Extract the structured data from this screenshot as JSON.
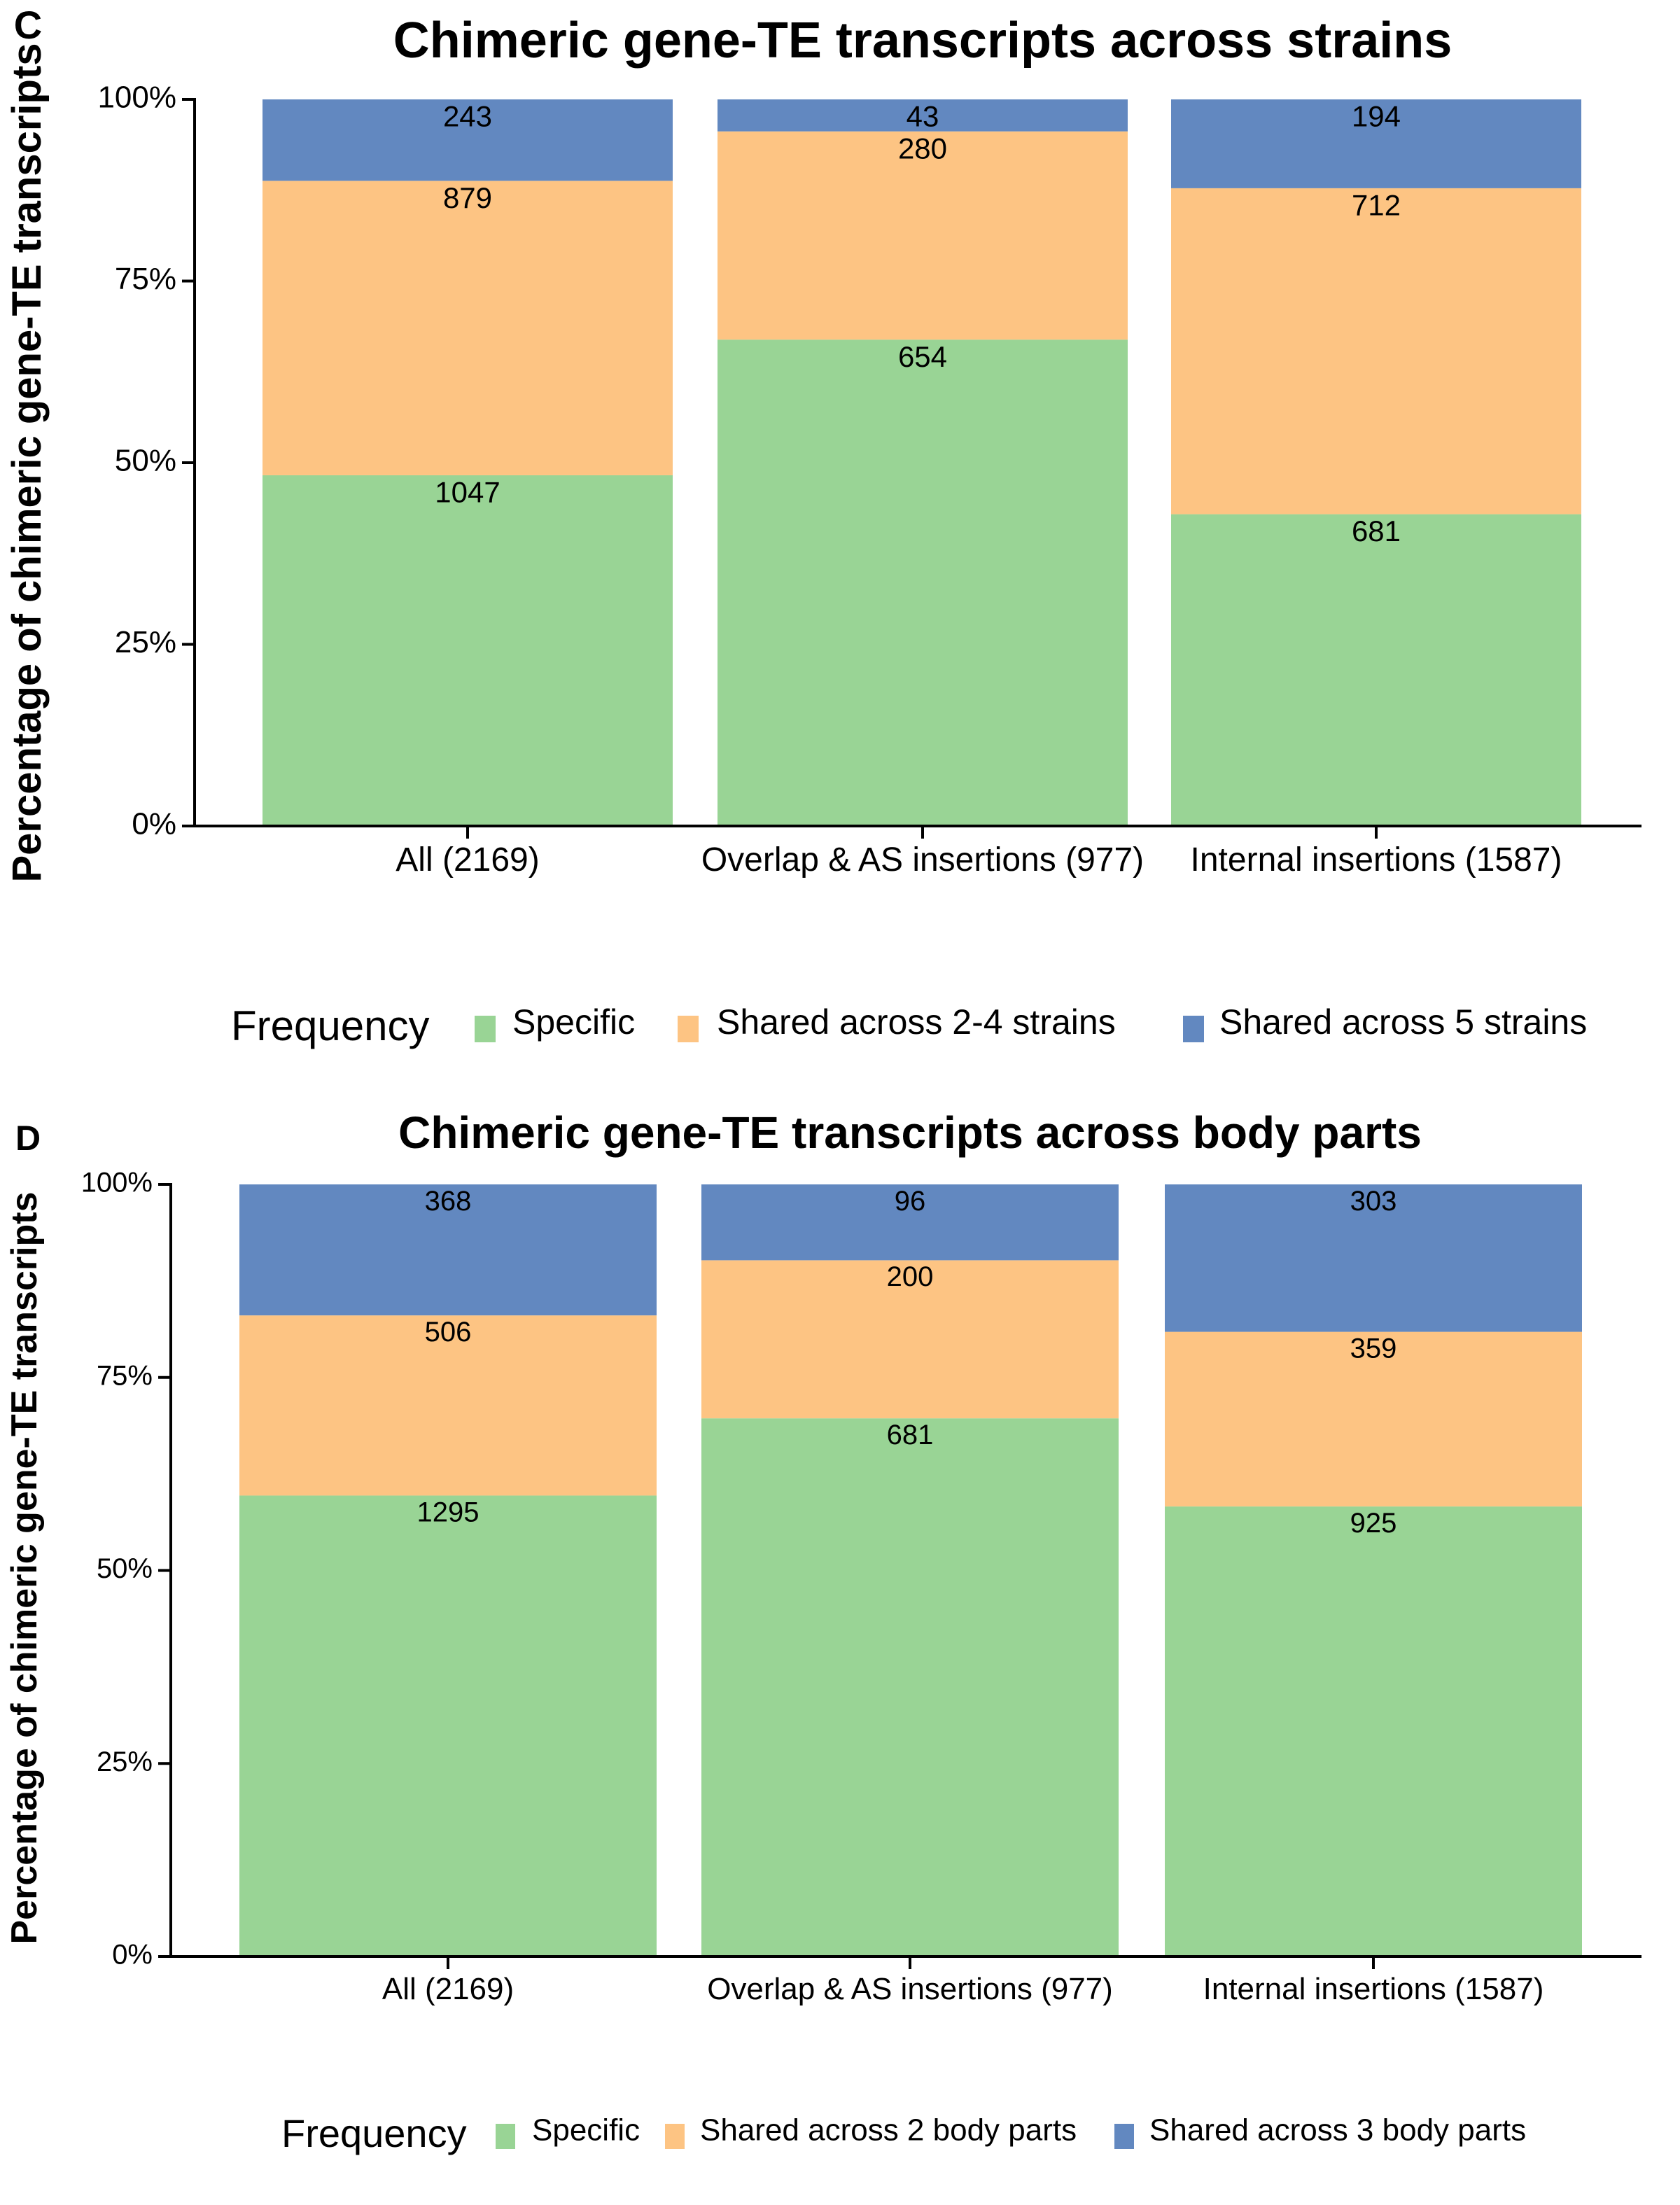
{
  "chart_data": [
    {
      "type": "bar",
      "stacked": "percent",
      "panel_label": "C",
      "title": "Chimeric gene-TE transcripts across strains",
      "ylabel": "Percentage of chimeric gene-TE  transcripts",
      "xlabel": "",
      "ylim": [
        0,
        100
      ],
      "yticks": [
        "0%",
        "25%",
        "50%",
        "75%",
        "100%"
      ],
      "categories": [
        "All (2169)",
        "Overlap & AS insertions (977)",
        "Internal insertions (1587)"
      ],
      "legend_title": "Frequency",
      "legend_position": "bottom",
      "grid": false,
      "series": [
        {
          "name": "Specific",
          "color": "#99D495",
          "values": [
            1047,
            654,
            681
          ]
        },
        {
          "name": "Shared across 2-4 strains",
          "color": "#FDC483",
          "values": [
            879,
            280,
            712
          ]
        },
        {
          "name": "Shared across 5 strains",
          "color": "#6288C0",
          "values": [
            243,
            43,
            194
          ]
        }
      ]
    },
    {
      "type": "bar",
      "stacked": "percent",
      "panel_label": "D",
      "title": "Chimeric gene-TE transcripts across body parts",
      "ylabel": "Percentage of chimeric gene-TE  transcripts",
      "xlabel": "",
      "ylim": [
        0,
        100
      ],
      "yticks": [
        "0%",
        "25%",
        "50%",
        "75%",
        "100%"
      ],
      "categories": [
        "All (2169)",
        "Overlap & AS insertions (977)",
        "Internal insertions (1587)"
      ],
      "legend_title": "Frequency",
      "legend_position": "bottom",
      "grid": false,
      "series": [
        {
          "name": "Specific",
          "color": "#99D495",
          "values": [
            1295,
            681,
            925
          ]
        },
        {
          "name": "Shared across 2 body parts",
          "color": "#FDC483",
          "values": [
            506,
            200,
            359
          ]
        },
        {
          "name": "Shared across 3 body parts",
          "color": "#6288C0",
          "values": [
            368,
            96,
            303
          ]
        }
      ]
    }
  ]
}
